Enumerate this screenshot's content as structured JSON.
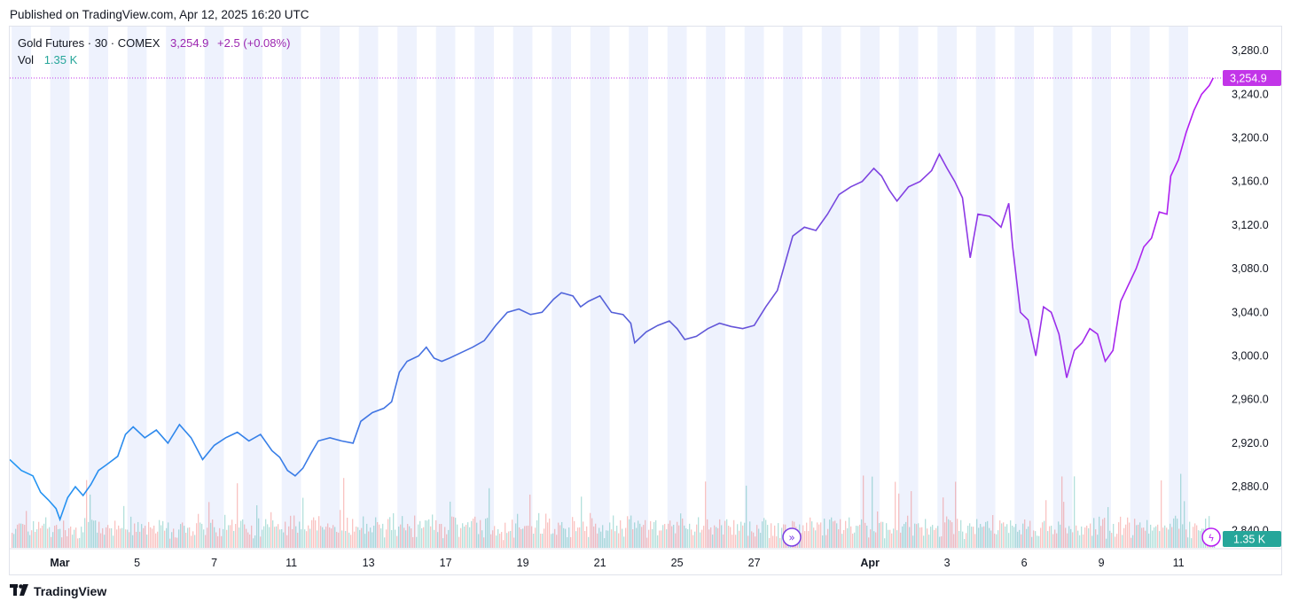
{
  "header": {
    "published": "Published on TradingView.com, Apr 12, 2025 16:20 UTC"
  },
  "legend": {
    "title": "Gold Futures · 30 · COMEX",
    "price": "3,254.9",
    "change": "+2.5 (+0.08%)",
    "vol_label": "Vol",
    "vol_value": "1.35 K"
  },
  "footer": {
    "brand": "TradingView",
    "logo_icon": "tradingview-logo-icon"
  },
  "colors": {
    "line_start": "#2196f3",
    "line_end": "#b71cf2",
    "volume_up": "#26a69a",
    "volume_down": "#ef5350",
    "price_tag": "#c235e8",
    "volume_tag": "#26a69a",
    "session_band": "#eef2fd"
  },
  "chart_data": {
    "type": "line",
    "y_ticks": [
      "3,280.0",
      "3,240.0",
      "3,200.0",
      "3,160.0",
      "3,120.0",
      "3,080.0",
      "3,040.0",
      "3,000.0",
      "2,960.0",
      "2,920.0",
      "2,880.0",
      "2,840.0"
    ],
    "y_tick_values": [
      3280,
      3240,
      3200,
      3160,
      3120,
      3080,
      3040,
      3000,
      2960,
      2920,
      2880,
      2840
    ],
    "ylim": [
      2824,
      3302
    ],
    "x_ticks": [
      "Mar",
      "5",
      "7",
      "11",
      "13",
      "17",
      "19",
      "21",
      "25",
      "27",
      "Apr",
      "3",
      "6",
      "9",
      "11"
    ],
    "x_tick_months": [
      true,
      false,
      false,
      false,
      false,
      false,
      false,
      false,
      false,
      false,
      true,
      false,
      false,
      false,
      false
    ],
    "x_tick_positions": [
      1.3,
      3.3,
      5.3,
      7.3,
      9.3,
      11.3,
      13.3,
      15.3,
      17.3,
      19.3,
      22.3,
      24.3,
      26.3,
      28.3,
      30.3
    ],
    "xlim": [
      0,
      31.4
    ],
    "series": [
      {
        "values": [
          [
            0,
            2905
          ],
          [
            0.3,
            2895
          ],
          [
            0.6,
            2890
          ],
          [
            0.8,
            2875
          ],
          [
            1.0,
            2868
          ],
          [
            1.2,
            2860
          ],
          [
            1.3,
            2850
          ],
          [
            1.5,
            2870
          ],
          [
            1.7,
            2880
          ],
          [
            1.9,
            2872
          ],
          [
            2.1,
            2882
          ],
          [
            2.3,
            2895
          ],
          [
            2.5,
            2900
          ],
          [
            2.8,
            2908
          ],
          [
            3.0,
            2928
          ],
          [
            3.2,
            2935
          ],
          [
            3.5,
            2925
          ],
          [
            3.8,
            2932
          ],
          [
            4.1,
            2920
          ],
          [
            4.4,
            2937
          ],
          [
            4.7,
            2925
          ],
          [
            5.0,
            2905
          ],
          [
            5.3,
            2918
          ],
          [
            5.6,
            2925
          ],
          [
            5.9,
            2930
          ],
          [
            6.2,
            2922
          ],
          [
            6.5,
            2928
          ],
          [
            6.8,
            2913
          ],
          [
            7.0,
            2907
          ],
          [
            7.2,
            2895
          ],
          [
            7.4,
            2890
          ],
          [
            7.6,
            2897
          ],
          [
            7.8,
            2910
          ],
          [
            8.0,
            2922
          ],
          [
            8.3,
            2925
          ],
          [
            8.6,
            2922
          ],
          [
            8.9,
            2920
          ],
          [
            9.1,
            2940
          ],
          [
            9.4,
            2948
          ],
          [
            9.7,
            2952
          ],
          [
            9.9,
            2958
          ],
          [
            10.1,
            2985
          ],
          [
            10.3,
            2995
          ],
          [
            10.6,
            3000
          ],
          [
            10.8,
            3008
          ],
          [
            11.0,
            2998
          ],
          [
            11.2,
            2995
          ],
          [
            11.4,
            2998
          ],
          [
            11.7,
            3003
          ],
          [
            12.0,
            3008
          ],
          [
            12.3,
            3014
          ],
          [
            12.6,
            3028
          ],
          [
            12.9,
            3040
          ],
          [
            13.2,
            3043
          ],
          [
            13.5,
            3038
          ],
          [
            13.8,
            3040
          ],
          [
            14.1,
            3052
          ],
          [
            14.3,
            3058
          ],
          [
            14.6,
            3055
          ],
          [
            14.8,
            3045
          ],
          [
            15.0,
            3050
          ],
          [
            15.3,
            3055
          ],
          [
            15.6,
            3040
          ],
          [
            15.9,
            3038
          ],
          [
            16.1,
            3030
          ],
          [
            16.2,
            3012
          ],
          [
            16.5,
            3022
          ],
          [
            16.8,
            3028
          ],
          [
            17.1,
            3032
          ],
          [
            17.3,
            3025
          ],
          [
            17.5,
            3015
          ],
          [
            17.8,
            3018
          ],
          [
            18.1,
            3025
          ],
          [
            18.4,
            3030
          ],
          [
            18.7,
            3027
          ],
          [
            19.0,
            3025
          ],
          [
            19.3,
            3028
          ],
          [
            19.6,
            3045
          ],
          [
            19.9,
            3060
          ],
          [
            20.1,
            3085
          ],
          [
            20.3,
            3110
          ],
          [
            20.6,
            3118
          ],
          [
            20.9,
            3115
          ],
          [
            21.2,
            3130
          ],
          [
            21.5,
            3148
          ],
          [
            21.8,
            3155
          ],
          [
            22.1,
            3160
          ],
          [
            22.4,
            3172
          ],
          [
            22.6,
            3165
          ],
          [
            22.8,
            3152
          ],
          [
            23.0,
            3142
          ],
          [
            23.3,
            3155
          ],
          [
            23.6,
            3160
          ],
          [
            23.9,
            3170
          ],
          [
            24.1,
            3185
          ],
          [
            24.3,
            3172
          ],
          [
            24.5,
            3160
          ],
          [
            24.7,
            3145
          ],
          [
            24.9,
            3090
          ],
          [
            25.1,
            3130
          ],
          [
            25.4,
            3128
          ],
          [
            25.7,
            3118
          ],
          [
            25.9,
            3140
          ],
          [
            26.0,
            3100
          ],
          [
            26.2,
            3040
          ],
          [
            26.4,
            3033
          ],
          [
            26.6,
            3000
          ],
          [
            26.8,
            3045
          ],
          [
            27.0,
            3040
          ],
          [
            27.2,
            3020
          ],
          [
            27.4,
            2980
          ],
          [
            27.6,
            3005
          ],
          [
            27.8,
            3012
          ],
          [
            28.0,
            3025
          ],
          [
            28.2,
            3020
          ],
          [
            28.4,
            2995
          ],
          [
            28.6,
            3005
          ],
          [
            28.8,
            3050
          ],
          [
            29.0,
            3065
          ],
          [
            29.2,
            3080
          ],
          [
            29.4,
            3100
          ],
          [
            29.6,
            3108
          ],
          [
            29.8,
            3132
          ],
          [
            30.0,
            3130
          ],
          [
            30.1,
            3165
          ],
          [
            30.3,
            3180
          ],
          [
            30.5,
            3205
          ],
          [
            30.7,
            3225
          ],
          [
            30.9,
            3240
          ],
          [
            31.1,
            3248
          ],
          [
            31.2,
            3254.9
          ]
        ]
      }
    ],
    "volume_max_label": "1.35 K",
    "last_price": 3254.9,
    "last_price_label": "3,254.9",
    "grid": false,
    "title": ""
  }
}
